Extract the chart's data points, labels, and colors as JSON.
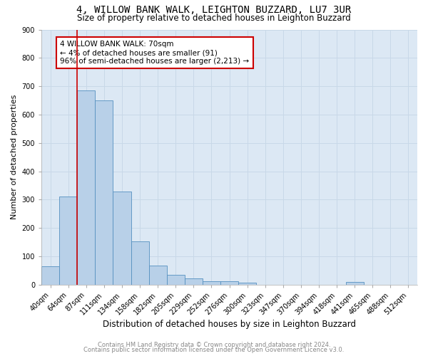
{
  "title": "4, WILLOW BANK WALK, LEIGHTON BUZZARD, LU7 3UR",
  "subtitle": "Size of property relative to detached houses in Leighton Buzzard",
  "xlabel": "Distribution of detached houses by size in Leighton Buzzard",
  "ylabel": "Number of detached properties",
  "bin_labels": [
    "40sqm",
    "64sqm",
    "87sqm",
    "111sqm",
    "134sqm",
    "158sqm",
    "182sqm",
    "205sqm",
    "229sqm",
    "252sqm",
    "276sqm",
    "300sqm",
    "323sqm",
    "347sqm",
    "370sqm",
    "394sqm",
    "418sqm",
    "441sqm",
    "465sqm",
    "488sqm",
    "512sqm"
  ],
  "bar_heights": [
    65,
    310,
    685,
    650,
    328,
    152,
    67,
    35,
    22,
    12,
    12,
    7,
    0,
    0,
    0,
    0,
    0,
    10,
    0,
    0,
    0
  ],
  "bar_color": "#b8d0e8",
  "bar_edge_color": "#5590c0",
  "vline_color": "#cc0000",
  "annotation_text": "4 WILLOW BANK WALK: 70sqm\n← 4% of detached houses are smaller (91)\n96% of semi-detached houses are larger (2,213) →",
  "annotation_box_color": "#ffffff",
  "annotation_box_edge_color": "#cc0000",
  "ylim": [
    0,
    900
  ],
  "yticks": [
    0,
    100,
    200,
    300,
    400,
    500,
    600,
    700,
    800,
    900
  ],
  "grid_color": "#c8d8e8",
  "background_color": "#dce8f4",
  "footer_line1": "Contains HM Land Registry data © Crown copyright and database right 2024.",
  "footer_line2": "Contains public sector information licensed under the Open Government Licence v3.0.",
  "title_fontsize": 10,
  "subtitle_fontsize": 8.5,
  "xlabel_fontsize": 8.5,
  "ylabel_fontsize": 8,
  "tick_fontsize": 7,
  "annot_fontsize": 7.5,
  "footer_fontsize": 6
}
